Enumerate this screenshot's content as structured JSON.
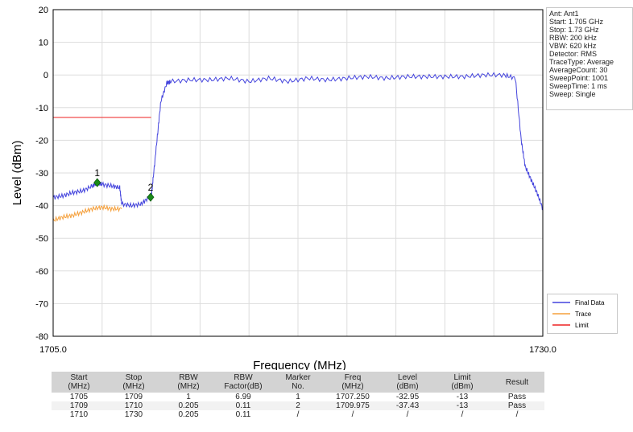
{
  "chart_data": {
    "type": "line",
    "xlabel": "Frequency (MHz)",
    "ylabel": "Level (dBm)",
    "xlim": [
      1705.0,
      1730.0
    ],
    "ylim": [
      -80,
      20
    ],
    "x_tick_labels": [
      "1705.0",
      "1730.0"
    ],
    "y_ticks": [
      20,
      10,
      0,
      -10,
      -20,
      -30,
      -40,
      -50,
      -60,
      -70,
      -80
    ],
    "grid": true,
    "legend_placement": "bottom-right",
    "series": [
      {
        "name": "Final Data",
        "color": "#4444dd",
        "x": [
          1705.0,
          1705.5,
          1706.0,
          1706.5,
          1707.0,
          1707.25,
          1707.5,
          1708.0,
          1708.4,
          1708.5,
          1709.0,
          1709.5,
          1709.9,
          1710.0,
          1710.1,
          1710.3,
          1710.5,
          1710.8,
          1711.0,
          1712.0,
          1713.0,
          1714.0,
          1715.0,
          1716.0,
          1717.0,
          1718.0,
          1719.0,
          1720.0,
          1721.0,
          1722.0,
          1723.0,
          1724.0,
          1725.0,
          1726.0,
          1727.0,
          1728.0,
          1728.6,
          1728.9,
          1729.1,
          1729.4,
          1729.7,
          1730.0
        ],
        "values": [
          -37.5,
          -37,
          -36,
          -35.5,
          -34,
          -32.95,
          -33.5,
          -34,
          -34.5,
          -39.5,
          -40,
          -39.5,
          -37.4,
          -38,
          -32,
          -20,
          -8,
          -2.5,
          -2,
          -1.5,
          -1.5,
          -1,
          -2,
          -1,
          -2,
          -1,
          -1.5,
          -1,
          -0.5,
          -1,
          -0.5,
          -0.5,
          -0.5,
          -0.5,
          0,
          0,
          -1,
          -20,
          -28,
          -32,
          -36,
          -41
        ]
      },
      {
        "name": "Trace",
        "color": "#f5a03c",
        "x": [
          1705.0,
          1705.5,
          1706.0,
          1706.5,
          1707.0,
          1707.5,
          1708.0,
          1708.5
        ],
        "values": [
          -44.5,
          -43.5,
          -43,
          -42,
          -41,
          -40.5,
          -41,
          -41
        ]
      },
      {
        "name": "Limit",
        "color": "#ee2222",
        "x": [
          1705.0,
          1710.0
        ],
        "values": [
          -13,
          -13
        ]
      }
    ],
    "markers": [
      {
        "label": "1",
        "x": 1707.25,
        "y": -32.95
      },
      {
        "label": "2",
        "x": 1709.975,
        "y": -37.43
      }
    ]
  },
  "info": {
    "lines": [
      "Ant: Ant1",
      "Start: 1.705 GHz",
      "Stop: 1.73 GHz",
      "RBW: 200 kHz",
      "VBW: 620 kHz",
      "Detector: RMS",
      "TraceType: Average",
      "AverageCount: 30",
      "SweepPoint: 1001",
      "SweepTime: 1 ms",
      "Sweep: Single"
    ]
  },
  "table": {
    "headers": [
      [
        "Start",
        "(MHz)"
      ],
      [
        "Stop",
        "(MHz)"
      ],
      [
        "RBW",
        "(MHz)"
      ],
      [
        "RBW",
        "Factor(dB)"
      ],
      [
        "Marker",
        "No."
      ],
      [
        "Freq",
        "(MHz)"
      ],
      [
        "Level",
        "(dBm)"
      ],
      [
        "Limit",
        "(dBm)"
      ],
      [
        "Result",
        ""
      ]
    ],
    "rows": [
      [
        "1705",
        "1709",
        "1",
        "6.99",
        "1",
        "1707.250",
        "-32.95",
        "-13",
        "Pass"
      ],
      [
        "1709",
        "1710",
        "0.205",
        "0.11",
        "2",
        "1709.975",
        "-37.43",
        "-13",
        "Pass"
      ],
      [
        "1710",
        "1730",
        "0.205",
        "0.11",
        "/",
        "/",
        "/",
        "/",
        "/"
      ]
    ]
  }
}
